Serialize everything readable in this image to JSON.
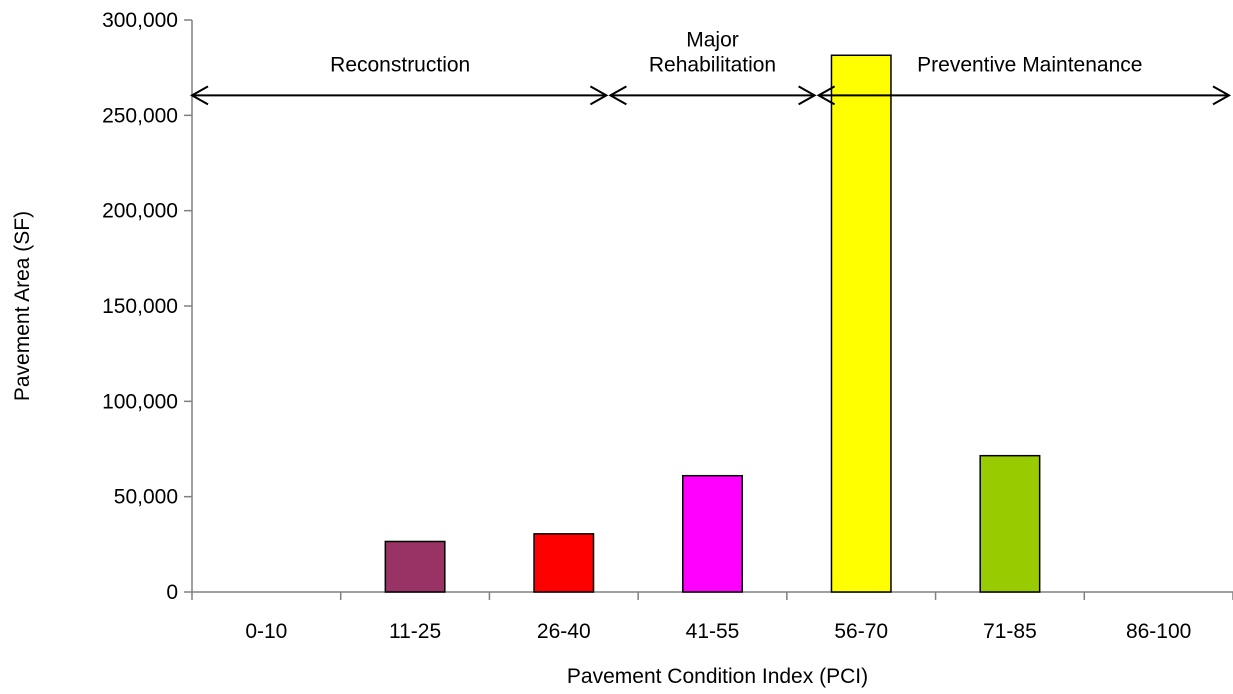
{
  "chart_data": {
    "type": "bar",
    "categories": [
      "0-10",
      "11-25",
      "26-40",
      "41-55",
      "56-70",
      "71-85",
      "86-100"
    ],
    "values": [
      0,
      26500,
      30500,
      61000,
      281500,
      71500,
      0
    ],
    "bar_colors": [
      "#993366",
      "#993366",
      "#FF0000",
      "#FF00FF",
      "#FFFF00",
      "#99CC00",
      "#99CC00"
    ],
    "xlabel": "Pavement Condition Index (PCI)",
    "ylabel": "Pavement Area (SF)",
    "ylim": [
      0,
      300000
    ],
    "yticks": [
      0,
      50000,
      100000,
      150000,
      200000,
      250000,
      300000
    ],
    "ytick_labels": [
      "0",
      "50,000",
      "100,000",
      "150,000",
      "200,000",
      "250,000",
      "300,000"
    ],
    "grid": false,
    "legend": "none",
    "annotations": [
      {
        "lines": [
          "Reconstruction"
        ],
        "start_category": 0,
        "end_category": 2.8
      },
      {
        "lines": [
          "Major",
          "Rehabilitation"
        ],
        "start_category": 2.8,
        "end_category": 4.2
      },
      {
        "lines": [
          "Preventive Maintenance"
        ],
        "start_category": 4.2,
        "end_category": 7.0
      }
    ],
    "annotation_arrow_value": 261000
  }
}
